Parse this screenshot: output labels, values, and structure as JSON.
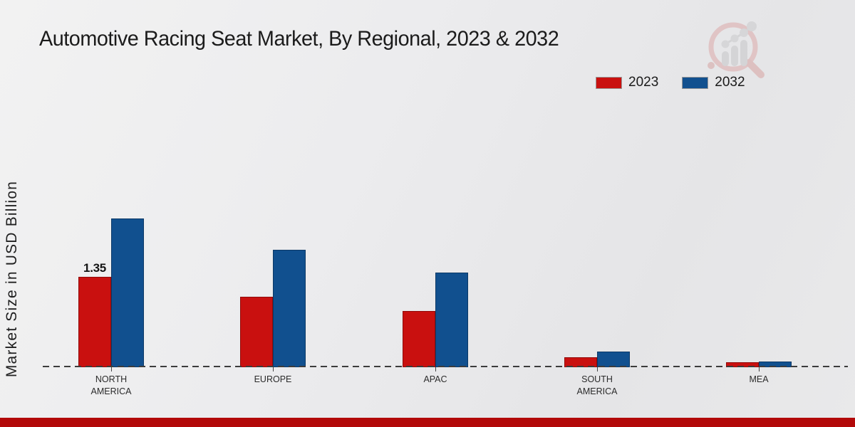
{
  "title": "Automotive Racing Seat Market, By Regional, 2023 & 2032",
  "ylabel": "Market Size in USD Billion",
  "legend": [
    {
      "label": "2023",
      "color": "#c9100f"
    },
    {
      "label": "2032",
      "color": "#11508f"
    }
  ],
  "footer": {
    "color": "#b20909"
  },
  "watermark": {
    "name": "market-research-magnifier-logo"
  },
  "chart_data": {
    "type": "bar",
    "title": "Automotive Racing Seat Market, By Regional, 2023 & 2032",
    "xlabel": "",
    "ylabel": "Market Size in USD Billion",
    "value_unit": "USD Billion",
    "categories": [
      "NORTH AMERICA",
      "EUROPE",
      "APAC",
      "SOUTH AMERICA",
      "MEA"
    ],
    "series": [
      {
        "name": "2023",
        "color": "#c9100f",
        "values": [
          1.35,
          1.05,
          0.84,
          0.15,
          0.07
        ]
      },
      {
        "name": "2032",
        "color": "#11508f",
        "values": [
          2.22,
          1.76,
          1.41,
          0.23,
          0.09
        ]
      }
    ],
    "data_labels": [
      {
        "series": "2023",
        "category": "NORTH AMERICA",
        "text": "1.35"
      }
    ],
    "legend_position": "top-right",
    "grid": false,
    "baseline_style": "dashed",
    "ylim": [
      0,
      2.5
    ]
  }
}
